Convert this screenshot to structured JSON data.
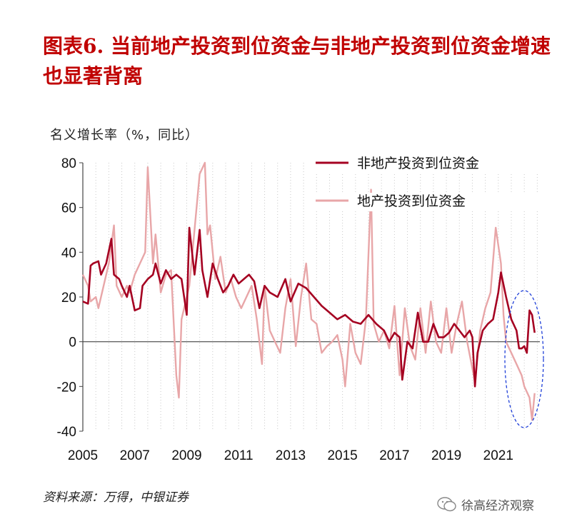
{
  "title": "图表6.  当前地产投资到位资金与非地产投资到位资金增速也显著背离",
  "y_unit_label": "名义增长率（%，同比）",
  "source": "资料来源：万得，中银证券",
  "watermark": "徐高经济观察",
  "colors": {
    "series1": "#a50021",
    "series2": "#e8a6a8",
    "title": "#c00000",
    "ellipse": "#1f3fd8"
  },
  "chart_data": {
    "type": "line",
    "ylim": [
      -40,
      80
    ],
    "yticks": [
      "80",
      "60",
      "40",
      "20",
      "0",
      "-20",
      "-40"
    ],
    "xticks": [
      "2005",
      "2007",
      "2009",
      "2011",
      "2013",
      "2015",
      "2017",
      "2019",
      "2021"
    ],
    "xlim": [
      2005.0,
      2022.6
    ],
    "grid": "vertical dotted",
    "legend": "top-right",
    "series": [
      {
        "name": "非地产投资到位资金",
        "x": [
          2005.0,
          2005.2,
          2005.3,
          2005.4,
          2005.6,
          2005.7,
          2005.9,
          2006.1,
          2006.2,
          2006.4,
          2006.5,
          2006.7,
          2006.8,
          2007.0,
          2007.2,
          2007.3,
          2007.5,
          2007.7,
          2007.8,
          2008.0,
          2008.2,
          2008.4,
          2008.6,
          2008.8,
          2009.0,
          2009.1,
          2009.3,
          2009.5,
          2009.6,
          2009.8,
          2010.0,
          2010.2,
          2010.4,
          2010.6,
          2010.8,
          2011.0,
          2011.2,
          2011.4,
          2011.6,
          2011.8,
          2012.0,
          2012.2,
          2012.5,
          2012.8,
          2013.0,
          2013.3,
          2013.6,
          2013.9,
          2014.2,
          2014.5,
          2014.8,
          2015.1,
          2015.4,
          2015.7,
          2016.0,
          2016.3,
          2016.6,
          2016.8,
          2017.0,
          2017.2,
          2017.3,
          2017.5,
          2017.7,
          2017.9,
          2018.1,
          2018.3,
          2018.5,
          2018.7,
          2018.9,
          2019.1,
          2019.3,
          2019.5,
          2019.7,
          2019.9,
          2020.0,
          2020.1,
          2020.2,
          2020.4,
          2020.6,
          2020.8,
          2021.0,
          2021.1,
          2021.3,
          2021.5,
          2021.7,
          2021.8,
          2021.9,
          2022.0,
          2022.1,
          2022.2,
          2022.3,
          2022.4
        ],
        "y": [
          18,
          17,
          34,
          35,
          36,
          30,
          35,
          46,
          30,
          28,
          25,
          20,
          25,
          14,
          15,
          25,
          28,
          30,
          35,
          26,
          32,
          28,
          30,
          28,
          12,
          51,
          30,
          50,
          32,
          20,
          35,
          28,
          22,
          25,
          30,
          26,
          28,
          30,
          27,
          15,
          25,
          22,
          20,
          28,
          18,
          26,
          24,
          20,
          16,
          13,
          10,
          12,
          9,
          8,
          12,
          8,
          5,
          0,
          4,
          2,
          -17,
          0,
          -3,
          13,
          0,
          0,
          8,
          2,
          2,
          4,
          8,
          5,
          2,
          5,
          2,
          -20,
          -5,
          5,
          8,
          10,
          22,
          31,
          20,
          10,
          5,
          -3,
          -3,
          -2,
          -5,
          14,
          12,
          4
        ],
        "values_note_type": "line"
      },
      {
        "name": "地产投资到位资金",
        "x": [
          2005.0,
          2005.2,
          2005.3,
          2005.5,
          2005.6,
          2005.8,
          2006.0,
          2006.2,
          2006.3,
          2006.5,
          2006.7,
          2006.8,
          2007.0,
          2007.2,
          2007.4,
          2007.5,
          2007.7,
          2007.8,
          2008.0,
          2008.2,
          2008.4,
          2008.6,
          2008.7,
          2008.8,
          2009.0,
          2009.1,
          2009.3,
          2009.5,
          2009.7,
          2009.8,
          2009.9,
          2010.1,
          2010.3,
          2010.5,
          2010.7,
          2010.9,
          2011.1,
          2011.3,
          2011.5,
          2011.7,
          2011.9,
          2012.0,
          2012.2,
          2012.4,
          2012.6,
          2012.8,
          2013.0,
          2013.2,
          2013.4,
          2013.6,
          2013.8,
          2014.0,
          2014.2,
          2014.4,
          2014.6,
          2014.8,
          2015.0,
          2015.1,
          2015.3,
          2015.5,
          2015.7,
          2015.9,
          2016.1,
          2016.2,
          2016.4,
          2016.6,
          2016.8,
          2017.0,
          2017.2,
          2017.4,
          2017.6,
          2017.8,
          2018.0,
          2018.2,
          2018.4,
          2018.6,
          2018.8,
          2019.0,
          2019.2,
          2019.4,
          2019.6,
          2019.8,
          2020.0,
          2020.1,
          2020.3,
          2020.5,
          2020.7,
          2020.9,
          2021.1,
          2021.2,
          2021.3,
          2021.5,
          2021.7,
          2021.9,
          2022.0,
          2022.2,
          2022.3,
          2022.4
        ],
        "y": [
          30,
          25,
          18,
          20,
          15,
          25,
          35,
          52,
          25,
          20,
          25,
          22,
          30,
          35,
          40,
          78,
          35,
          48,
          22,
          30,
          32,
          -15,
          -25,
          10,
          20,
          25,
          50,
          75,
          82,
          48,
          52,
          28,
          38,
          22,
          28,
          20,
          15,
          20,
          25,
          10,
          -10,
          25,
          5,
          0,
          -5,
          15,
          28,
          -2,
          20,
          35,
          10,
          8,
          -5,
          -2,
          0,
          3,
          -8,
          -20,
          8,
          -5,
          -10,
          10,
          68,
          8,
          0,
          5,
          -3,
          16,
          -15,
          15,
          -2,
          -8,
          15,
          -5,
          18,
          0,
          -5,
          15,
          -5,
          8,
          18,
          0,
          -12,
          -18,
          5,
          15,
          22,
          51,
          35,
          12,
          0,
          -5,
          -10,
          -15,
          -20,
          -25,
          -35,
          -23
        ]
      }
    ]
  }
}
